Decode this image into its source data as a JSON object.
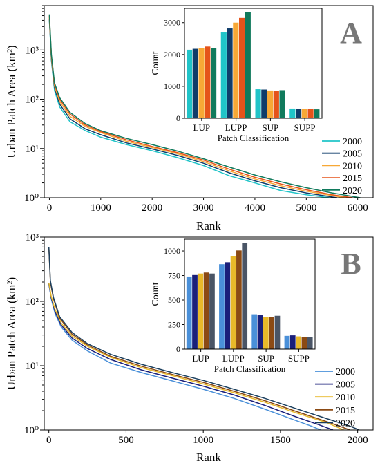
{
  "chart_data": [
    {
      "panel": "A",
      "type": "line",
      "xlabel": "Rank",
      "ylabel": "Urban Patch Area (km²)",
      "yscale": "log",
      "xlim": [
        -100,
        6300
      ],
      "ylim": [
        1,
        8000
      ],
      "x_ticks": [
        0,
        1000,
        2000,
        3000,
        4000,
        5000,
        6000
      ],
      "y_ticks": [
        1,
        10,
        100,
        1000
      ],
      "y_tick_labels": [
        "10⁰",
        "10¹",
        "10²",
        "10³"
      ],
      "legend_position": "bottom-right",
      "series": [
        {
          "name": "2000",
          "color": "#20c4c8",
          "points": [
            [
              0,
              4000
            ],
            [
              40,
              600
            ],
            [
              100,
              150
            ],
            [
              200,
              70
            ],
            [
              400,
              35
            ],
            [
              700,
              23
            ],
            [
              1000,
              17
            ],
            [
              1500,
              12
            ],
            [
              2000,
              9
            ],
            [
              2500,
              6.5
            ],
            [
              3000,
              4.5
            ],
            [
              3500,
              2.8
            ],
            [
              4000,
              2
            ],
            [
              4500,
              1.4
            ],
            [
              5000,
              1.15
            ],
            [
              5450,
              1
            ]
          ]
        },
        {
          "name": "2005",
          "color": "#0f3c6a",
          "points": [
            [
              0,
              4300
            ],
            [
              40,
              650
            ],
            [
              100,
              170
            ],
            [
              200,
              80
            ],
            [
              400,
              40
            ],
            [
              700,
              25
            ],
            [
              1000,
              19
            ],
            [
              1500,
              13
            ],
            [
              2000,
              9.8
            ],
            [
              2500,
              7.2
            ],
            [
              3000,
              5
            ],
            [
              3500,
              3.2
            ],
            [
              4000,
              2.2
            ],
            [
              4500,
              1.6
            ],
            [
              5000,
              1.25
            ],
            [
              5600,
              1
            ]
          ]
        },
        {
          "name": "2010",
          "color": "#f7a836",
          "points": [
            [
              0,
              4600
            ],
            [
              40,
              700
            ],
            [
              100,
              185
            ],
            [
              200,
              90
            ],
            [
              400,
              45
            ],
            [
              700,
              28
            ],
            [
              1000,
              21
            ],
            [
              1500,
              14
            ],
            [
              2000,
              10.5
            ],
            [
              2500,
              7.8
            ],
            [
              3000,
              5.4
            ],
            [
              3500,
              3.5
            ],
            [
              4000,
              2.4
            ],
            [
              4500,
              1.75
            ],
            [
              5000,
              1.35
            ],
            [
              5750,
              1
            ]
          ]
        },
        {
          "name": "2015",
          "color": "#e5531a",
          "points": [
            [
              0,
              5000
            ],
            [
              40,
              750
            ],
            [
              100,
              200
            ],
            [
              200,
              100
            ],
            [
              400,
              50
            ],
            [
              700,
              30
            ],
            [
              1000,
              22
            ],
            [
              1500,
              15
            ],
            [
              2000,
              11
            ],
            [
              2500,
              8.2
            ],
            [
              3000,
              5.8
            ],
            [
              3500,
              3.8
            ],
            [
              4000,
              2.6
            ],
            [
              4500,
              1.9
            ],
            [
              5000,
              1.45
            ],
            [
              5500,
              1.15
            ],
            [
              5900,
              1
            ]
          ]
        },
        {
          "name": "2020",
          "color": "#107a5c",
          "points": [
            [
              0,
              5300
            ],
            [
              40,
              800
            ],
            [
              100,
              215
            ],
            [
              200,
              108
            ],
            [
              400,
              54
            ],
            [
              700,
              32
            ],
            [
              1000,
              23
            ],
            [
              1500,
              16
            ],
            [
              2000,
              12
            ],
            [
              2500,
              8.8
            ],
            [
              3000,
              6.2
            ],
            [
              3500,
              4.2
            ],
            [
              4000,
              2.9
            ],
            [
              4500,
              2.1
            ],
            [
              5000,
              1.6
            ],
            [
              5500,
              1.25
            ],
            [
              6050,
              1
            ]
          ]
        }
      ],
      "inset": {
        "type": "bar",
        "label": "A",
        "xlabel": "Patch Classification",
        "ylabel": "Count",
        "categories": [
          "LUP",
          "LUPP",
          "SUP",
          "SUPP"
        ],
        "ylim": [
          0,
          3450
        ],
        "y_ticks": [
          0,
          1000,
          2000,
          3000
        ],
        "series": [
          {
            "name": "2000",
            "color": "#20c4c8",
            "values": [
              2150,
              2690,
              910,
              305
            ]
          },
          {
            "name": "2005",
            "color": "#0f3c6a",
            "values": [
              2180,
              2820,
              900,
              300
            ]
          },
          {
            "name": "2010",
            "color": "#f7a836",
            "values": [
              2200,
              3000,
              870,
              290
            ]
          },
          {
            "name": "2015",
            "color": "#e5531a",
            "values": [
              2250,
              3150,
              860,
              285
            ]
          },
          {
            "name": "2020",
            "color": "#107a5c",
            "values": [
              2210,
              3320,
              880,
              280
            ]
          }
        ]
      }
    },
    {
      "panel": "B",
      "type": "line",
      "xlabel": "Rank",
      "ylabel": "Urban Patch Area (km²)",
      "yscale": "log",
      "xlim": [
        -30,
        2100
      ],
      "ylim": [
        1,
        1000
      ],
      "x_ticks": [
        0,
        500,
        1000,
        1500,
        2000
      ],
      "y_ticks": [
        1,
        10,
        100,
        1000
      ],
      "y_tick_labels": [
        "10⁰",
        "10¹",
        "10²",
        "10³"
      ],
      "legend_position": "bottom-right",
      "series": [
        {
          "name": "2000",
          "color": "#4a90d9",
          "points": [
            [
              0,
              185
            ],
            [
              15,
              110
            ],
            [
              40,
              65
            ],
            [
              80,
              40
            ],
            [
              150,
              25
            ],
            [
              250,
              17
            ],
            [
              400,
              11
            ],
            [
              600,
              7.8
            ],
            [
              800,
              5.8
            ],
            [
              1000,
              4.3
            ],
            [
              1200,
              3.1
            ],
            [
              1400,
              2.1
            ],
            [
              1550,
              1.55
            ],
            [
              1700,
              1.15
            ],
            [
              1760,
              1
            ]
          ]
        },
        {
          "name": "2005",
          "color": "#1a1f7a",
          "points": [
            [
              0,
              190
            ],
            [
              15,
              115
            ],
            [
              40,
              70
            ],
            [
              80,
              43
            ],
            [
              150,
              27
            ],
            [
              250,
              18.5
            ],
            [
              400,
              12.5
            ],
            [
              600,
              8.6
            ],
            [
              800,
              6.4
            ],
            [
              1000,
              4.8
            ],
            [
              1200,
              3.5
            ],
            [
              1400,
              2.4
            ],
            [
              1600,
              1.6
            ],
            [
              1750,
              1.2
            ],
            [
              1840,
              1
            ]
          ]
        },
        {
          "name": "2010",
          "color": "#e8b92a",
          "points": [
            [
              0,
              195
            ],
            [
              15,
              120
            ],
            [
              40,
              75
            ],
            [
              80,
              46
            ],
            [
              150,
              29
            ],
            [
              250,
              20
            ],
            [
              400,
              13.5
            ],
            [
              600,
              9.3
            ],
            [
              800,
              7
            ],
            [
              1000,
              5.2
            ],
            [
              1200,
              3.8
            ],
            [
              1400,
              2.7
            ],
            [
              1600,
              1.85
            ],
            [
              1800,
              1.3
            ],
            [
              1910,
              1
            ]
          ]
        },
        {
          "name": "2015",
          "color": "#8b4a14",
          "points": [
            [
              0,
              680
            ],
            [
              10,
              200
            ],
            [
              30,
              110
            ],
            [
              70,
              55
            ],
            [
              150,
              31
            ],
            [
              250,
              21
            ],
            [
              400,
              14
            ],
            [
              600,
              9.8
            ],
            [
              800,
              7.3
            ],
            [
              1000,
              5.5
            ],
            [
              1200,
              4
            ],
            [
              1400,
              2.85
            ],
            [
              1600,
              1.95
            ],
            [
              1800,
              1.35
            ],
            [
              1950,
              1
            ]
          ]
        },
        {
          "name": "2020",
          "color": "#1b3f5e",
          "points": [
            [
              0,
              700
            ],
            [
              10,
              210
            ],
            [
              30,
              115
            ],
            [
              70,
              58
            ],
            [
              150,
              33
            ],
            [
              250,
              22
            ],
            [
              400,
              15
            ],
            [
              600,
              10.5
            ],
            [
              800,
              7.8
            ],
            [
              1000,
              5.9
            ],
            [
              1200,
              4.3
            ],
            [
              1400,
              3.1
            ],
            [
              1600,
              2.15
            ],
            [
              1800,
              1.5
            ],
            [
              1950,
              1.15
            ],
            [
              2010,
              1
            ]
          ]
        }
      ],
      "inset": {
        "type": "bar",
        "label": "B",
        "xlabel": "Patch Classification",
        "ylabel": "Count",
        "categories": [
          "LUP",
          "LUPP",
          "SUP",
          "SUPP"
        ],
        "ylim": [
          0,
          1120
        ],
        "y_ticks": [
          0,
          250,
          500,
          750,
          1000
        ],
        "series": [
          {
            "name": "2000",
            "color": "#4a90d9",
            "values": [
              740,
              865,
              355,
              135
            ]
          },
          {
            "name": "2005",
            "color": "#1a1f7a",
            "values": [
              755,
              885,
              345,
              140
            ]
          },
          {
            "name": "2010",
            "color": "#e8b92a",
            "values": [
              770,
              945,
              330,
              130
            ]
          },
          {
            "name": "2015",
            "color": "#8b4a14",
            "values": [
              780,
              1005,
              325,
              122
            ]
          },
          {
            "name": "2020",
            "color": "#4a5566",
            "values": [
              770,
              1080,
              340,
              120
            ]
          }
        ]
      }
    }
  ]
}
